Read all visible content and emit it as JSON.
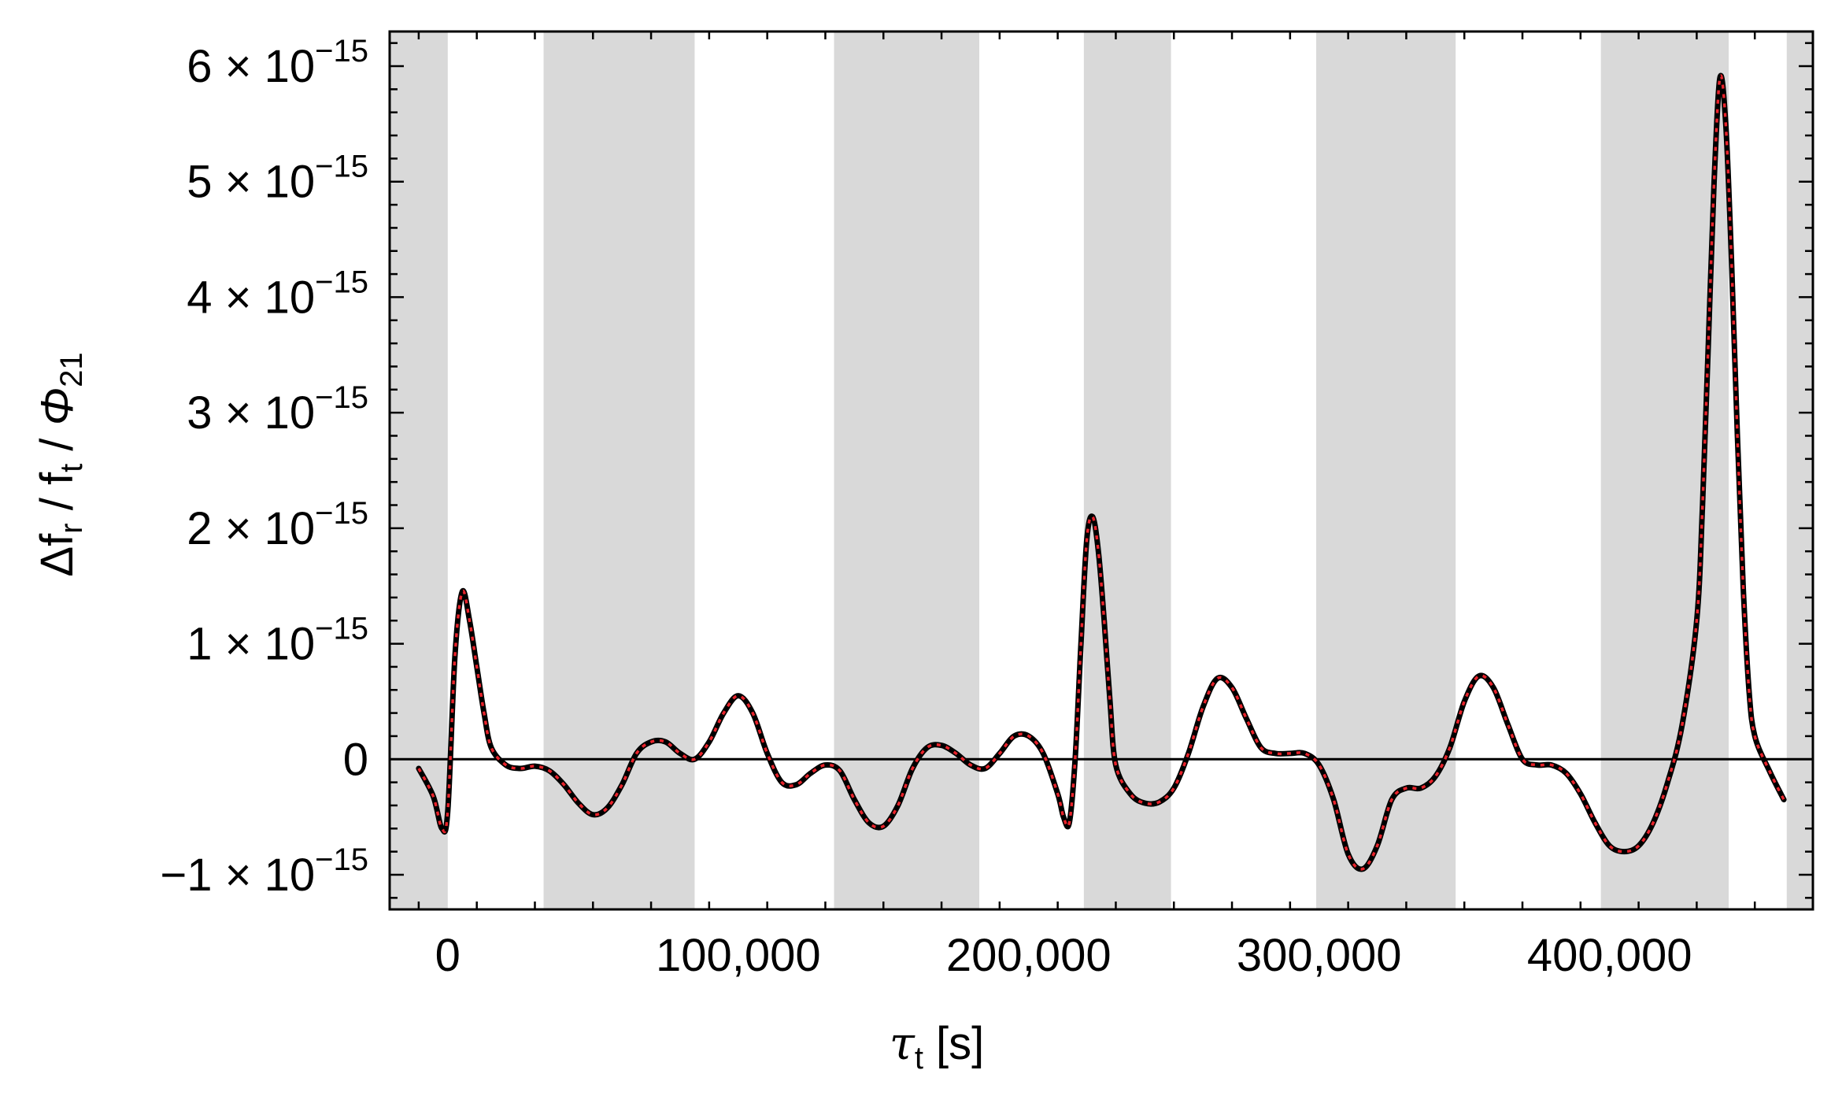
{
  "chart_data": {
    "type": "line",
    "xlabel": {
      "symbol": "τ",
      "sub": "t",
      "unit": " [s]"
    },
    "ylabel": {
      "p1": "Δf",
      "s1": "r",
      "p2": " / f",
      "s2": "t",
      "p3": " / ",
      "p4": "Φ",
      "s4": "21"
    },
    "xlim": [
      -20000,
      470000
    ],
    "ylim": [
      -1.3e-15,
      6.3e-15
    ],
    "x_ticks": [
      {
        "value": 0,
        "label": "0"
      },
      {
        "value": 100000,
        "label": "100,000"
      },
      {
        "value": 200000,
        "label": "200,000"
      },
      {
        "value": 300000,
        "label": "300,000"
      },
      {
        "value": 400000,
        "label": "400,000"
      }
    ],
    "y_ticks": [
      {
        "value": -1e-15,
        "mant": "−1",
        "exp": "−15"
      },
      {
        "value": 0,
        "mant": "0",
        "exp": ""
      },
      {
        "value": 1e-15,
        "mant": "1",
        "exp": "−15"
      },
      {
        "value": 2e-15,
        "mant": "2",
        "exp": "−15"
      },
      {
        "value": 3e-15,
        "mant": "3",
        "exp": "−15"
      },
      {
        "value": 4e-15,
        "mant": "4",
        "exp": "−15"
      },
      {
        "value": 5e-15,
        "mant": "5",
        "exp": "−15"
      },
      {
        "value": 6e-15,
        "mant": "6",
        "exp": "−15"
      }
    ],
    "shaded_bands": [
      [
        -20000,
        0
      ],
      [
        33000,
        85000
      ],
      [
        133000,
        183000
      ],
      [
        219000,
        249000
      ],
      [
        299000,
        347000
      ],
      [
        397000,
        441000
      ],
      [
        461000,
        470000
      ]
    ],
    "grid": false,
    "zero_line": true,
    "colors": {
      "band": "#d9d9d9",
      "line_main": "#000000",
      "line_overlay": "#e8232b"
    },
    "series": [
      {
        "style": "black solid with red dotted overlay",
        "x": [
          -10000,
          -5000,
          -2000,
          0,
          2500,
          5000,
          7500,
          10000,
          12500,
          15000,
          20000,
          25000,
          30000,
          35000,
          40000,
          45000,
          50000,
          55000,
          60000,
          65000,
          70000,
          75000,
          80000,
          85000,
          90000,
          95000,
          100000,
          105000,
          110000,
          115000,
          120000,
          125000,
          130000,
          135000,
          140000,
          145000,
          150000,
          155000,
          160000,
          165000,
          170000,
          175000,
          180000,
          185000,
          190000,
          195000,
          200000,
          205000,
          210000,
          212000,
          214000,
          216000,
          218000,
          220000,
          222000,
          224000,
          226000,
          228000,
          230000,
          235000,
          240000,
          245000,
          250000,
          255000,
          260000,
          265000,
          270000,
          275000,
          280000,
          285000,
          290000,
          295000,
          300000,
          305000,
          310000,
          315000,
          320000,
          325000,
          330000,
          335000,
          340000,
          345000,
          350000,
          355000,
          360000,
          365000,
          370000,
          375000,
          380000,
          385000,
          390000,
          395000,
          400000,
          405000,
          410000,
          415000,
          420000,
          425000,
          430000,
          432000,
          434000,
          436000,
          438000,
          440000,
          442000,
          444000,
          446000,
          448000,
          450000,
          455000,
          460000
        ],
        "y": [
          -8e-17,
          -3.2e-16,
          -6e-16,
          -4.5e-16,
          9e-16,
          1.45e-15,
          1.2e-15,
          8e-16,
          4e-16,
          1e-16,
          -5e-17,
          -8e-17,
          -6e-17,
          -1e-16,
          -2.2e-16,
          -3.8e-16,
          -4.8e-16,
          -4.2e-16,
          -2.2e-16,
          5e-17,
          1.5e-16,
          1.5e-16,
          5e-17,
          0.0,
          1.5e-16,
          4e-16,
          5.5e-16,
          4e-16,
          5e-17,
          -2e-16,
          -2.2e-16,
          -1.2e-16,
          -5e-17,
          -1e-16,
          -3.5e-16,
          -5.5e-16,
          -5.8e-16,
          -4e-16,
          -8e-17,
          1e-16,
          1.2e-16,
          5e-17,
          -5e-17,
          -8e-17,
          5e-17,
          2e-16,
          2e-16,
          5e-17,
          -3e-16,
          -5e-16,
          -5.5e-16,
          0.0,
          1e-15,
          1.9e-15,
          2.1e-15,
          1.8e-15,
          1.2e-15,
          5e-16,
          -5e-17,
          -3e-16,
          -3.8e-16,
          -3.7e-16,
          -2.5e-16,
          5e-17,
          4.5e-16,
          7e-16,
          6.2e-16,
          3.5e-16,
          1e-16,
          5e-17,
          5e-17,
          5e-17,
          -5e-17,
          -3.5e-16,
          -8.2e-16,
          -9.5e-16,
          -7.5e-16,
          -3.5e-16,
          -2.5e-16,
          -2.5e-16,
          -1.5e-16,
          1e-16,
          5e-16,
          7.2e-16,
          6.2e-16,
          3e-16,
          0.0,
          -5e-17,
          -5e-17,
          -1.2e-16,
          -3e-16,
          -5.5e-16,
          -7.5e-16,
          -8e-16,
          -7.5e-16,
          -5.5e-16,
          -2e-16,
          3e-16,
          1.2e-15,
          2.2e-15,
          3.6e-15,
          5e-15,
          5.9e-15,
          5.5e-15,
          4.3e-15,
          2.8e-15,
          1.5e-15,
          6e-16,
          2e-16,
          -1e-16,
          -3.5e-16
        ]
      }
    ]
  }
}
